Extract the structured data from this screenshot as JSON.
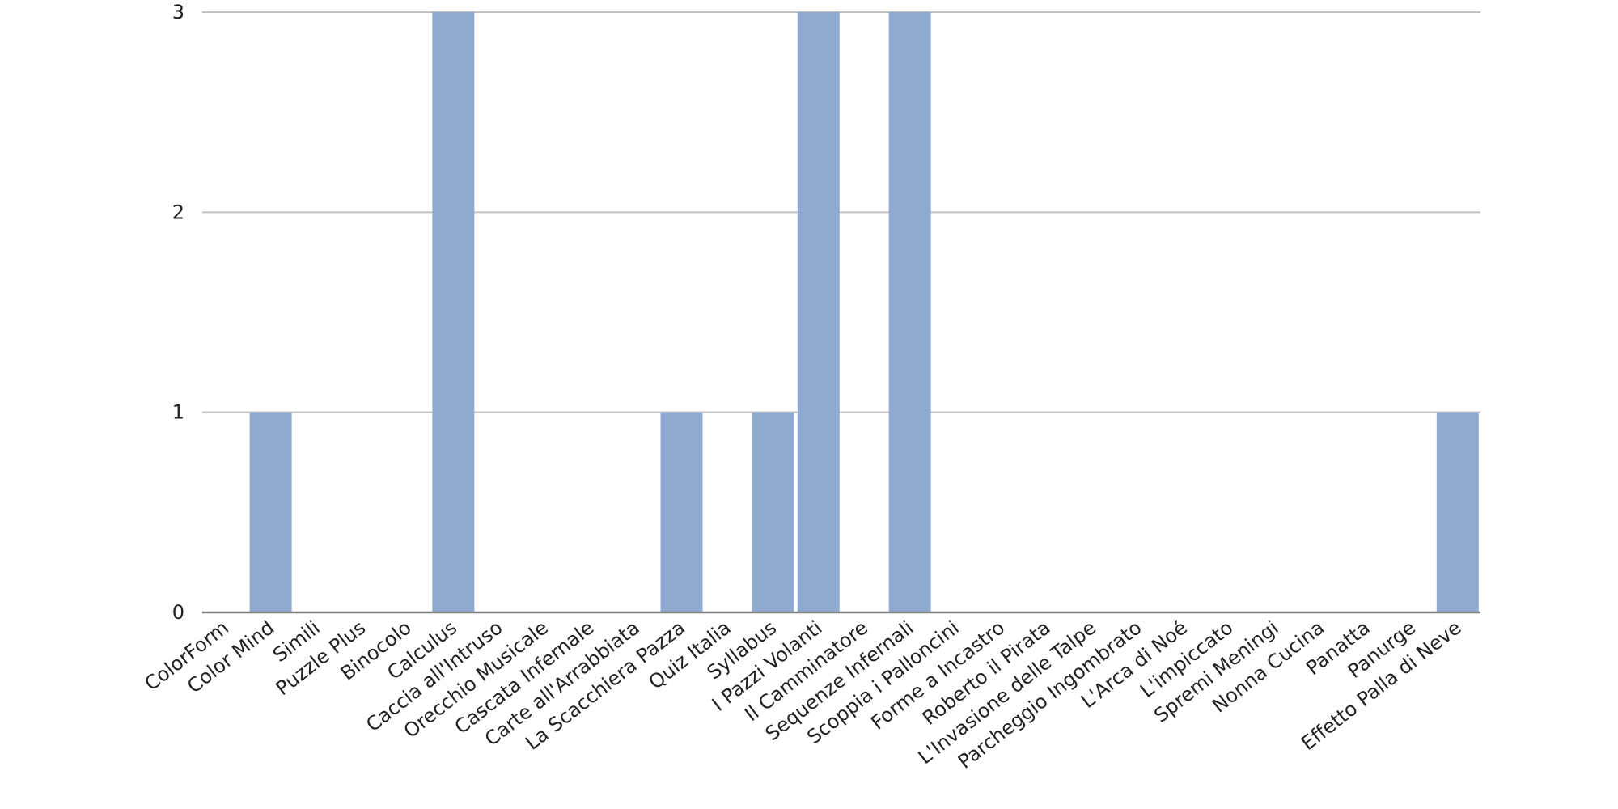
{
  "chart_data": {
    "type": "bar",
    "title": "",
    "xlabel": "",
    "ylabel": "",
    "ylim": [
      0,
      3
    ],
    "yticks": [
      0,
      1,
      2,
      3
    ],
    "grid": true,
    "legend": "none",
    "bar_color": "#8faad1",
    "categories": [
      "ColorForm",
      "Color Mind",
      "Simili",
      "Puzzle Plus",
      "Binocolo",
      "Calculus",
      "Caccia all'Intruso",
      "Orecchio Musicale",
      "Cascata Infernale",
      "Carte all'Arrabbiata",
      "La Scacchiera Pazza",
      "Quiz Italia",
      "Syllabus",
      "I Pazzi Volanti",
      "Il Camminatore",
      "Sequenze Infernali",
      "Scoppia i Palloncini",
      "Forme a Incastro",
      "Roberto il Pirata",
      "L'Invasione delle Talpe",
      "Parcheggio Ingombrato",
      "L'Arca di Noé",
      "L'impiccato",
      "Spremi Meningi",
      "Nonna Cucina",
      "Panatta",
      "Panurge",
      "Effetto Palla di Neve"
    ],
    "values": [
      0,
      1,
      0,
      0,
      0,
      3,
      0,
      0,
      0,
      0,
      1,
      0,
      1,
      3,
      0,
      3,
      0,
      0,
      0,
      0,
      0,
      0,
      0,
      0,
      0,
      0,
      0,
      1
    ]
  }
}
